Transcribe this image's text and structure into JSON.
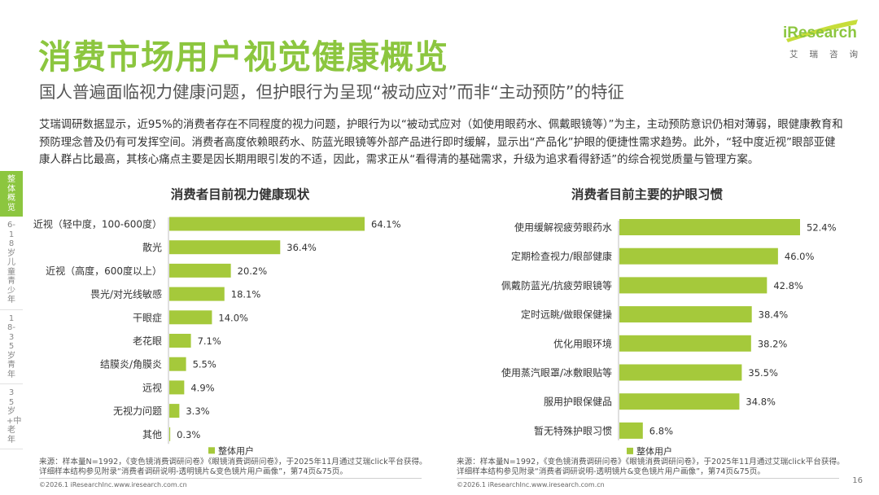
{
  "page": {
    "title": "消费市场用户视觉健康概览",
    "subtitle": "国人普遍面临视力健康问题，但护眼行为呈现“被动应对”而非“主动预防”的特征",
    "body": "艾瑞调研数据显示，近95%的消费者存在不同程度的视力问题，护眼行为以“被动式应对（如使用眼药水、佩戴眼镜等）”为主，主动预防意识仍相对薄弱，眼健康教育和预防理念普及仍有可发挥空间。消费者高度依赖眼药水、防蓝光眼镜等外部产品进行即时缓解，显示出“产品化”护眼的便捷性需求趋势。此外，“轻中度近视”眼部亚健康人群占比最高，其核心痛点主要是因长期用眼引发的不适，因此，需求正从“看得清的基础需求，升级为追求看得舒适”的综合视觉质量与管理方案。",
    "page_number": "16"
  },
  "logo": {
    "brand": "iResearch",
    "sub": "艾瑞咨询",
    "color": "#8cc63f"
  },
  "side_nav": [
    {
      "label": "整体概览",
      "active": true
    },
    {
      "label": "6-18岁儿童青少年",
      "active": false
    },
    {
      "label": "18-35岁青年",
      "active": false
    },
    {
      "label": "35岁+中老年",
      "active": false
    }
  ],
  "colors": {
    "accent": "#8cc63f",
    "bar": "#a5c93b"
  },
  "chart_data": [
    {
      "type": "bar",
      "orientation": "horizontal",
      "title": "消费者目前视力健康现状",
      "categories": [
        "近视（轻中度，100-600度）",
        "散光",
        "近视（高度，600度以上）",
        "畏光/对光线敏感",
        "干眼症",
        "老花眼",
        "结膜炎/角膜炎",
        "远视",
        "无视力问题",
        "其他"
      ],
      "series": [
        {
          "name": "整体用户",
          "values": [
            64.1,
            36.4,
            20.2,
            18.1,
            14.0,
            7.1,
            5.5,
            4.9,
            3.3,
            0.3
          ]
        }
      ],
      "value_labels": [
        "64.1%",
        "36.4%",
        "20.2%",
        "18.1%",
        "14.0%",
        "7.1%",
        "5.5%",
        "4.9%",
        "3.3%",
        "0.3%"
      ],
      "legend": "bottom",
      "source": "来源：样本量N=1992，《变色镜消费调研问卷》《眼镜消费调研问卷》，于2025年11月通过艾瑞click平台获得。详细样本结构参见附录“消费者调研说明-透明镜片&变色镜片用户画像”，第74页&75页。",
      "copyright": "©2026.1 iResearchInc.www.iresearch.com.cn"
    },
    {
      "type": "bar",
      "orientation": "horizontal",
      "title": "消费者目前主要的护眼习惯",
      "categories": [
        "使用缓解视疲劳眼药水",
        "定期检查视力/眼部健康",
        "佩戴防蓝光/抗疲劳眼镜等",
        "定时远眺/做眼保健操",
        "优化用眼环境",
        "使用蒸汽眼罩/冰敷眼贴等",
        "服用护眼保健品",
        "暂无特殊护眼习惯"
      ],
      "series": [
        {
          "name": "整体用户",
          "values": [
            52.4,
            46.0,
            42.8,
            38.4,
            38.2,
            35.5,
            34.8,
            6.8
          ]
        }
      ],
      "value_labels": [
        "52.4%",
        "46.0%",
        "42.8%",
        "38.4%",
        "38.2%",
        "35.5%",
        "34.8%",
        "6.8%"
      ],
      "legend": "bottom",
      "source": "来源：样本量N=1992，《变色镜消费调研问卷》《眼镜消费调研问卷》，于2025年11月通过艾瑞click平台获得。详细样本结构参见附录“消费者调研说明-透明镜片&变色镜片用户画像”，第74页&75页。",
      "copyright": "©2026.1 iResearchInc.www.iresearch.com.cn"
    }
  ]
}
